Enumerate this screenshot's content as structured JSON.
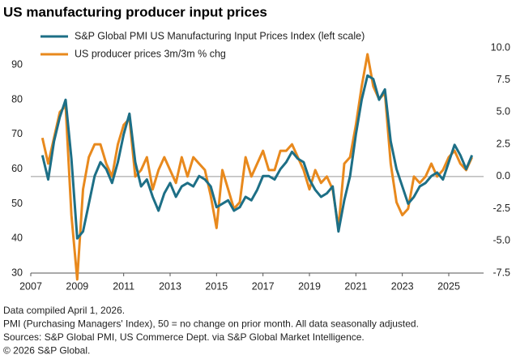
{
  "chart_data": {
    "type": "line",
    "title": "US manufacturing producer input prices",
    "x": [
      2007.5,
      2007.75,
      2008,
      2008.25,
      2008.5,
      2008.75,
      2009,
      2009.25,
      2009.5,
      2009.75,
      2010,
      2010.25,
      2010.5,
      2010.75,
      2011,
      2011.25,
      2011.5,
      2011.75,
      2012,
      2012.25,
      2012.5,
      2012.75,
      2013,
      2013.25,
      2013.5,
      2013.75,
      2014,
      2014.25,
      2014.5,
      2014.75,
      2015,
      2015.25,
      2015.5,
      2015.75,
      2016,
      2016.25,
      2016.5,
      2016.75,
      2017,
      2017.25,
      2017.5,
      2017.75,
      2018,
      2018.25,
      2018.5,
      2018.75,
      2019,
      2019.25,
      2019.5,
      2019.75,
      2020,
      2020.25,
      2020.5,
      2020.75,
      2021,
      2021.25,
      2021.5,
      2021.75,
      2022,
      2022.25,
      2022.5,
      2022.75,
      2023,
      2023.25,
      2023.5,
      2023.75,
      2024,
      2024.25,
      2024.5,
      2024.75,
      2025,
      2025.25,
      2025.5,
      2025.75,
      2026
    ],
    "series": [
      {
        "name": "S&P Global PMI US Manufacturing Input Prices Index (left scale)",
        "color": "#1d6f86",
        "values": [
          64,
          57,
          68,
          75,
          80,
          63,
          40,
          42,
          50,
          58,
          62,
          60,
          56,
          62,
          70,
          76,
          62,
          55,
          57,
          52,
          48,
          53,
          56,
          52,
          55,
          56,
          55,
          58,
          57,
          55,
          49,
          50,
          51,
          48,
          49,
          52,
          51,
          54,
          58,
          58,
          57,
          60,
          62,
          65,
          63,
          62,
          57,
          54,
          52,
          53,
          55,
          42,
          51,
          58,
          70,
          80,
          87,
          86,
          80,
          83,
          68,
          60,
          55,
          50,
          52,
          55,
          56,
          58,
          59,
          57,
          62,
          67,
          64,
          60,
          64
        ]
      },
      {
        "name": "US producer prices  3m/3m % chg",
        "color": "#e8891d",
        "axis": "y2",
        "values": [
          3.0,
          1.0,
          3,
          5,
          5.5,
          -3,
          -8,
          -1,
          1.5,
          2.5,
          2.5,
          1,
          0,
          2.5,
          4,
          4.5,
          0,
          0.5,
          1.5,
          -1,
          0.5,
          1.5,
          0.5,
          -0.5,
          1.5,
          0,
          1.5,
          1,
          0.5,
          -1.5,
          -4,
          0.5,
          -1,
          -2.5,
          -2,
          1.5,
          0,
          1,
          2,
          0.5,
          0.5,
          2,
          2,
          2.5,
          1.5,
          0.5,
          -1,
          0.5,
          -0.5,
          0,
          -1,
          -4,
          1,
          1.5,
          4,
          7,
          9.5,
          7,
          6,
          6.5,
          1,
          -2,
          -3,
          -2.5,
          0,
          -0.5,
          0,
          1,
          0,
          0.5,
          1.5,
          2,
          1,
          0.5,
          1.5
        ]
      }
    ],
    "xlim": [
      2007,
      2026.5
    ],
    "xticks": [
      2007,
      2009,
      2011,
      2013,
      2015,
      2017,
      2019,
      2021,
      2023,
      2025
    ],
    "ylim": [
      30,
      95
    ],
    "yticks": [
      30,
      40,
      50,
      60,
      70,
      80,
      90
    ],
    "y2lim": [
      -7.5,
      10
    ],
    "y2ticks": [
      {
        "value": 10,
        "label": "10.0"
      },
      7.5,
      {
        "value": 5,
        "label": "5.0"
      },
      2.5,
      {
        "value": 0,
        "label": "0.0"
      },
      -2.5,
      {
        "value": -5,
        "label": "-5.0"
      },
      -7.5
    ],
    "notes": [
      "Data compiled April 1, 2026.",
      "PMI (Purchasing Managers' Index), 50 = no change on prior month. All data seasonally adjusted.",
      "Sources: S&P Global PMI, US Commerce Dept. via S&P Global Market Intelligence.",
      "© 2026 S&P Global."
    ]
  }
}
